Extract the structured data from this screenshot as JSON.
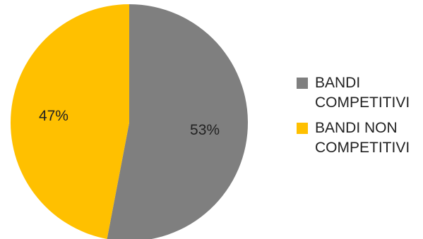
{
  "chart_data": {
    "type": "pie",
    "title": "",
    "slices": [
      {
        "label": "BANDI COMPETITIVI",
        "value": 53,
        "display": "53%",
        "color": "#7f7f7f"
      },
      {
        "label": "BANDI NON COMPETITIVI",
        "value": 47,
        "display": "47%",
        "color": "#ffc000"
      }
    ],
    "legend_position": "right"
  },
  "legend": {
    "items": [
      {
        "line1": "BANDI",
        "line2": "COMPETITIVI",
        "color": "#7f7f7f"
      },
      {
        "line1": "BANDI NON",
        "line2": "COMPETITIVI",
        "color": "#ffc000"
      }
    ]
  }
}
